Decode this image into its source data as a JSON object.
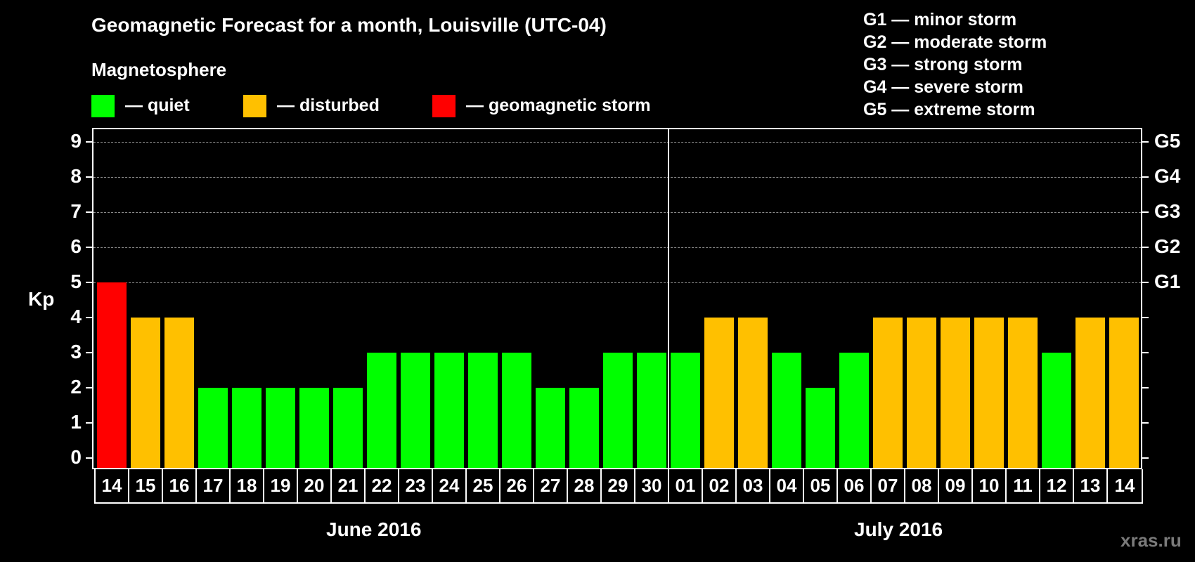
{
  "title": "Geomagnetic Forecast for a month, Louisville (UTC-04)",
  "subtitle": "Magnetosphere",
  "legend": [
    {
      "label": "— quiet",
      "color": "#00ff00"
    },
    {
      "label": "— disturbed",
      "color": "#ffc000"
    },
    {
      "label": "— geomagnetic storm",
      "color": "#ff0000"
    }
  ],
  "storm_scale": [
    "G1 — minor storm",
    "G2 — moderate storm",
    "G3 — strong storm",
    "G4 — severe storm",
    "G5 — extreme storm"
  ],
  "y_axis": {
    "label": "Kp",
    "ticks": [
      "0",
      "1",
      "2",
      "3",
      "4",
      "5",
      "6",
      "7",
      "8",
      "9"
    ],
    "right_labels": {
      "5": "G1",
      "6": "G2",
      "7": "G3",
      "8": "G4",
      "9": "G5"
    }
  },
  "months": [
    "June 2016",
    "July 2016"
  ],
  "watermark": "xras.ru",
  "chart_data": {
    "type": "bar",
    "title": "Geomagnetic Forecast for a month, Louisville (UTC-04)",
    "subtitle": "Magnetosphere",
    "xlabel": "",
    "ylabel": "Kp",
    "ylim": [
      0,
      9
    ],
    "grid": true,
    "categories": [
      "14",
      "15",
      "16",
      "17",
      "18",
      "19",
      "20",
      "21",
      "22",
      "23",
      "24",
      "25",
      "26",
      "27",
      "28",
      "29",
      "30",
      "01",
      "02",
      "03",
      "04",
      "05",
      "06",
      "07",
      "08",
      "09",
      "10",
      "11",
      "12",
      "13",
      "14"
    ],
    "month_groups": [
      {
        "label": "June 2016",
        "start": 0,
        "end": 16
      },
      {
        "label": "July 2016",
        "start": 17,
        "end": 30
      }
    ],
    "values": [
      5,
      4,
      4,
      2,
      2,
      2,
      2,
      2,
      3,
      3,
      3,
      3,
      3,
      2,
      2,
      3,
      3,
      3,
      4,
      4,
      3,
      2,
      3,
      4,
      4,
      4,
      4,
      4,
      3,
      4,
      4
    ],
    "color_rule": {
      "quiet": "Kp<=3 #00ff00",
      "disturbed": "Kp=4 #ffc000",
      "storm": "Kp>=5 #ff0000"
    },
    "legend": [
      "quiet",
      "disturbed",
      "geomagnetic storm"
    ],
    "secondary_axis": {
      "5": "G1",
      "6": "G2",
      "7": "G3",
      "8": "G4",
      "9": "G5"
    }
  }
}
